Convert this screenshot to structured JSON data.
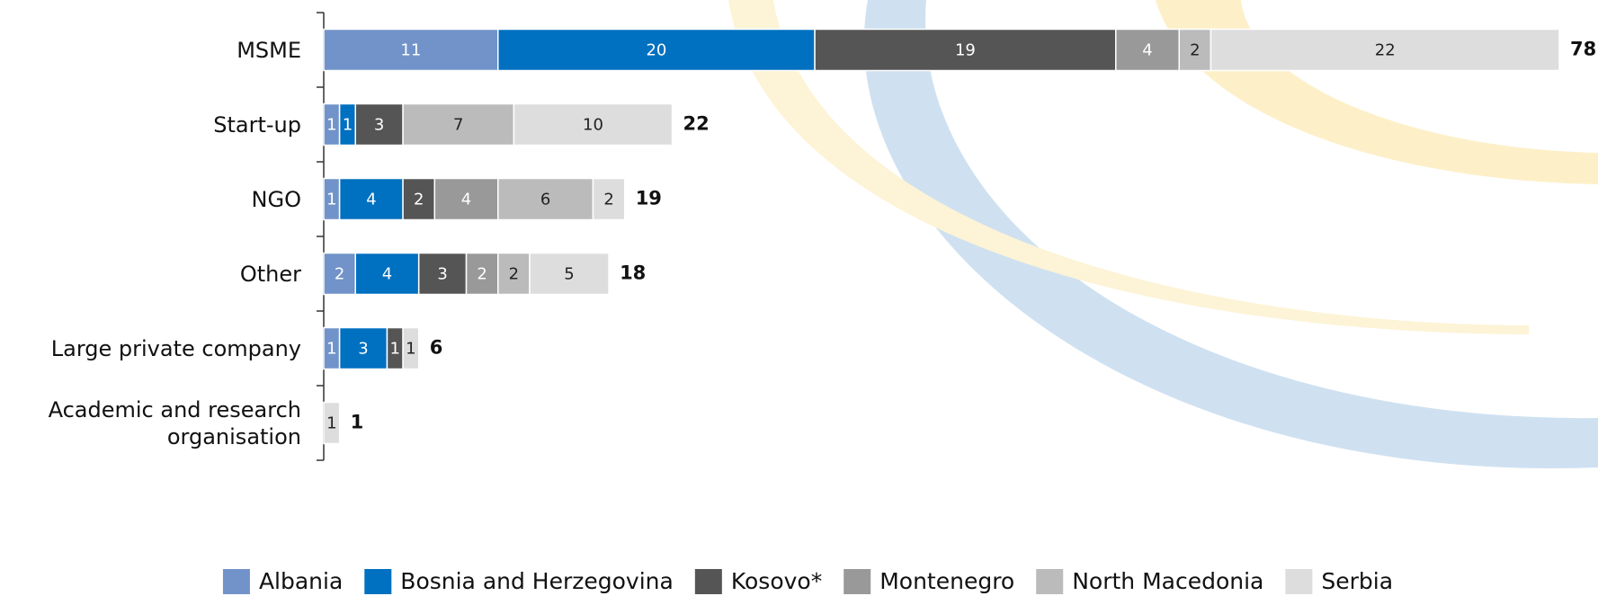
{
  "chart_data": {
    "type": "stacked-bar-horizontal",
    "categories": [
      "MSME",
      "Start-up",
      "NGO",
      "Other",
      "Large private company",
      "Academic and research organisation"
    ],
    "series": [
      {
        "name": "Albania",
        "color": "#7193c9",
        "values": [
          11,
          1,
          1,
          2,
          1,
          null
        ]
      },
      {
        "name": "Bosnia and Herzegovina",
        "color": "#0070c0",
        "values": [
          20,
          1,
          4,
          4,
          3,
          null
        ]
      },
      {
        "name": "Kosovo*",
        "color": "#555555",
        "values": [
          19,
          3,
          2,
          3,
          1,
          null
        ]
      },
      {
        "name": "Montenegro",
        "color": "#999999",
        "values": [
          4,
          null,
          4,
          2,
          null,
          null
        ]
      },
      {
        "name": "North Macedonia",
        "color": "#bbbbbb",
        "values": [
          2,
          7,
          6,
          2,
          null,
          null
        ]
      },
      {
        "name": "Serbia",
        "color": "#dddddd",
        "values": [
          22,
          10,
          2,
          5,
          1,
          1
        ]
      }
    ],
    "totals": [
      78,
      22,
      19,
      18,
      6,
      1
    ],
    "legend": "bottom"
  }
}
